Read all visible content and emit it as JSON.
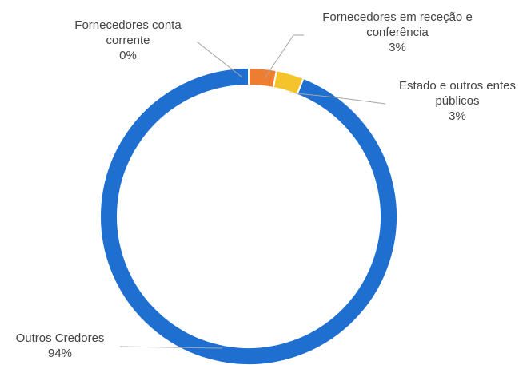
{
  "chart_data": {
    "type": "donut",
    "categories": [
      "Fornecedores conta corrente",
      "Fornecedores em receção e conferência",
      "Estado e outros entes públicos",
      "Outros Credores"
    ],
    "values": [
      0,
      3,
      3,
      94
    ],
    "value_labels": [
      "0%",
      "3%",
      "3%",
      "94%"
    ],
    "colors": [
      "#a5a5a5",
      "#ed7d31",
      "#f5c32c",
      "#1f6fd1"
    ]
  }
}
